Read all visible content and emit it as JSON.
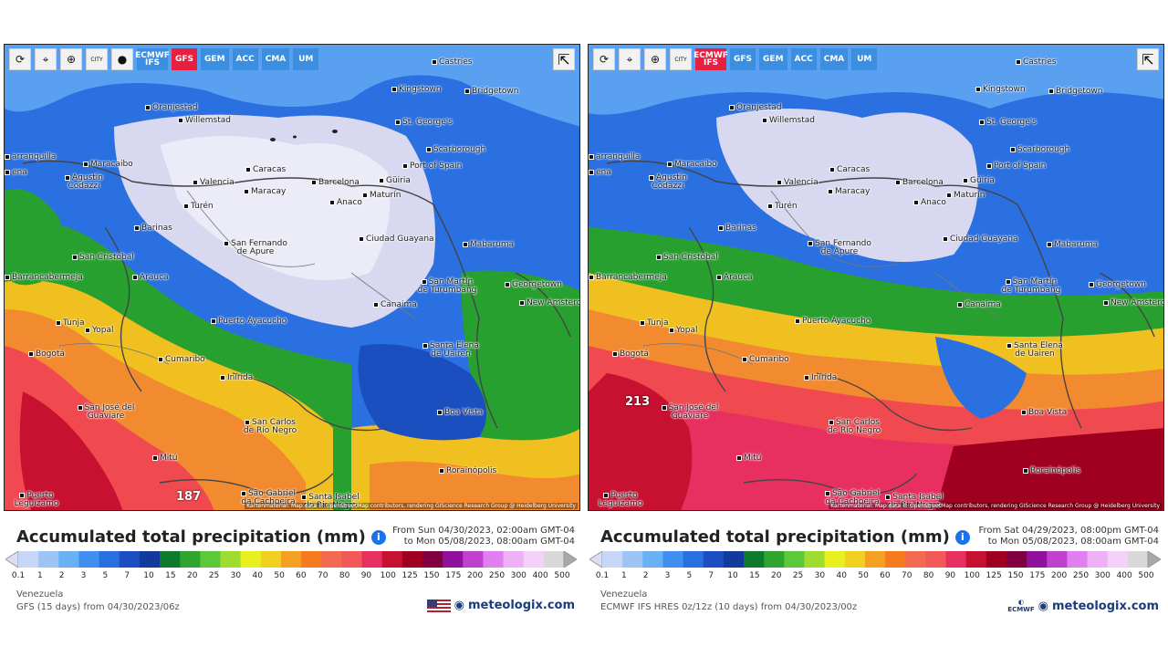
{
  "colors": {
    "legend": [
      "#dcdcf5",
      "#c6d6f5",
      "#9cc4f5",
      "#6ab0f5",
      "#3f8ff0",
      "#2a6fe0",
      "#1b4fc0",
      "#133a9a",
      "#0e7a2c",
      "#2ea52e",
      "#5cc83a",
      "#a0dc30",
      "#e8f020",
      "#f2d020",
      "#f5a020",
      "#f57a20",
      "#f26a50",
      "#f25a5a",
      "#e83060",
      "#c81030",
      "#a00020",
      "#800040",
      "#9010a0",
      "#c040d0",
      "#e080f0",
      "#f0b0f5",
      "#f5d0f8",
      "#d8d8d8",
      "#a8a8a8"
    ],
    "brand": "#1a3c7a",
    "active_model": "#e8203f",
    "model_button": "#3b8ee0"
  },
  "icons": [
    "refresh-icon",
    "location-pin-icon",
    "zoom-icon",
    "city-icon",
    "dot-icon",
    "share-icon",
    "info-icon",
    "flag-icon",
    "ecmwf-logo-icon",
    "meteologix-logo-icon"
  ],
  "scale_labels": [
    "0.1",
    "1",
    "2",
    "3",
    "5",
    "7",
    "10",
    "15",
    "20",
    "25",
    "30",
    "40",
    "50",
    "60",
    "70",
    "80",
    "90",
    "100",
    "125",
    "150",
    "175",
    "200",
    "250",
    "300",
    "400",
    "500"
  ],
  "places": [
    {
      "name": "Castries",
      "cls": "castries"
    },
    {
      "name": "Kingstown",
      "cls": "kingstown"
    },
    {
      "name": "Bridgetown",
      "cls": "bridgetown"
    },
    {
      "name": "Oranjestad",
      "cls": "oranjestad"
    },
    {
      "name": "Willemstad",
      "cls": "willemstad"
    },
    {
      "name": "St. George's",
      "cls": "stgeorges"
    },
    {
      "name": "Scarborough",
      "cls": "scarborough"
    },
    {
      "name": "Port of Spain",
      "cls": "portofspain"
    },
    {
      "name": "arranquilla",
      "cls": "barranquilla"
    },
    {
      "name": "Maracaibo",
      "cls": "maracaibo"
    },
    {
      "name": "Caracas",
      "cls": "caracas"
    },
    {
      "name": "Valencia",
      "cls": "valencia"
    },
    {
      "name": "Maracay",
      "cls": "maracay"
    },
    {
      "name": "Barcelona",
      "cls": "barcelona"
    },
    {
      "name": "Güiria",
      "cls": "guiria"
    },
    {
      "name": "Maturín",
      "cls": "maturin"
    },
    {
      "name": "Anaco",
      "cls": "anaco"
    },
    {
      "name": "Agustín Codazzi",
      "cls": "codazzi"
    },
    {
      "name": "Barinas",
      "cls": "barinas"
    },
    {
      "name": "Turén",
      "cls": "turen"
    },
    {
      "name": "San Fernando de Apure",
      "cls": "sanfernando"
    },
    {
      "name": "Ciudad Guayana",
      "cls": "ciudadguayana"
    },
    {
      "name": "Mabaruma",
      "cls": "mabaruma"
    },
    {
      "name": "San Cristóbal",
      "cls": "sancristobal"
    },
    {
      "name": "Barrancabermeja",
      "cls": "barranca"
    },
    {
      "name": "Arauca",
      "cls": "arauca"
    },
    {
      "name": "San Martín de Turumbang",
      "cls": "sanmartin"
    },
    {
      "name": "Georgetown",
      "cls": "georgetown"
    },
    {
      "name": "New Amsterdam",
      "cls": "newamsterdam"
    },
    {
      "name": "Canaima",
      "cls": "canaima"
    },
    {
      "name": "Tunja",
      "cls": "tunja"
    },
    {
      "name": "Yopal",
      "cls": "yopal"
    },
    {
      "name": "Puerto Ayacucho",
      "cls": "puertoayacucho"
    },
    {
      "name": "Bogotá",
      "cls": "bogota"
    },
    {
      "name": "Santa Elena de Uairen",
      "cls": "santaelena"
    },
    {
      "name": "Cumaribo",
      "cls": "cumaribo"
    },
    {
      "name": "Inírida",
      "cls": "inirida"
    },
    {
      "name": "San José del Guaviare",
      "cls": "sanjose"
    },
    {
      "name": "Boa Vista",
      "cls": "boavista"
    },
    {
      "name": "San Carlos de Río Negro",
      "cls": "sancarlos"
    },
    {
      "name": "Mitú",
      "cls": "mitu"
    },
    {
      "name": "Rorainópolis",
      "cls": "rorainopolis"
    },
    {
      "name": "São Gabriel da Cachoeira",
      "cls": "saogabriel"
    },
    {
      "name": "Santa Isabel do Rio Negro",
      "cls": "santaisabel"
    },
    {
      "name": "Puerto Leguízamo",
      "cls": "leguizamo"
    },
    {
      "name": "ena",
      "cls": "ena"
    }
  ],
  "attribution": "Kartenmaterial: Map data © OpenStreetMap contributors, rendering GIScience Research Group @ Heidelberg University",
  "legend_title": "Accumulated total precipitation (mm)",
  "region": "Venezuela",
  "brand_name": "meteologix.com",
  "left": {
    "toolbar": {
      "city_label": "CITY",
      "models": [
        {
          "label": "ECMWF IFS",
          "active": false
        },
        {
          "label": "GFS",
          "active": true
        },
        {
          "label": "GEM",
          "active": false
        },
        {
          "label": "ACC",
          "active": false
        },
        {
          "label": "CMA",
          "active": false
        },
        {
          "label": "UM",
          "active": false
        }
      ]
    },
    "max_value": "187",
    "date_from": "From Sun 04/30/2023, 02:00am GMT-04",
    "date_to": "to Mon 05/08/2023, 08:00am GMT-04",
    "model_line": "GFS (15 days) from 04/30/2023/06z"
  },
  "right": {
    "toolbar": {
      "city_label": "CITY",
      "models": [
        {
          "label": "ECMWF IFS",
          "active": true
        },
        {
          "label": "GFS",
          "active": false
        },
        {
          "label": "GEM",
          "active": false
        },
        {
          "label": "ACC",
          "active": false
        },
        {
          "label": "CMA",
          "active": false
        },
        {
          "label": "UM",
          "active": false
        }
      ]
    },
    "max_value": "213",
    "date_from": "From Sat 04/29/2023, 08:00pm GMT-04",
    "date_to": "to Mon 05/08/2023, 08:00am GMT-04",
    "model_line": "ECMWF IFS HRES 0z/12z (10 days) from 04/30/2023/00z",
    "ecmwf_logo": "ECMWF"
  }
}
